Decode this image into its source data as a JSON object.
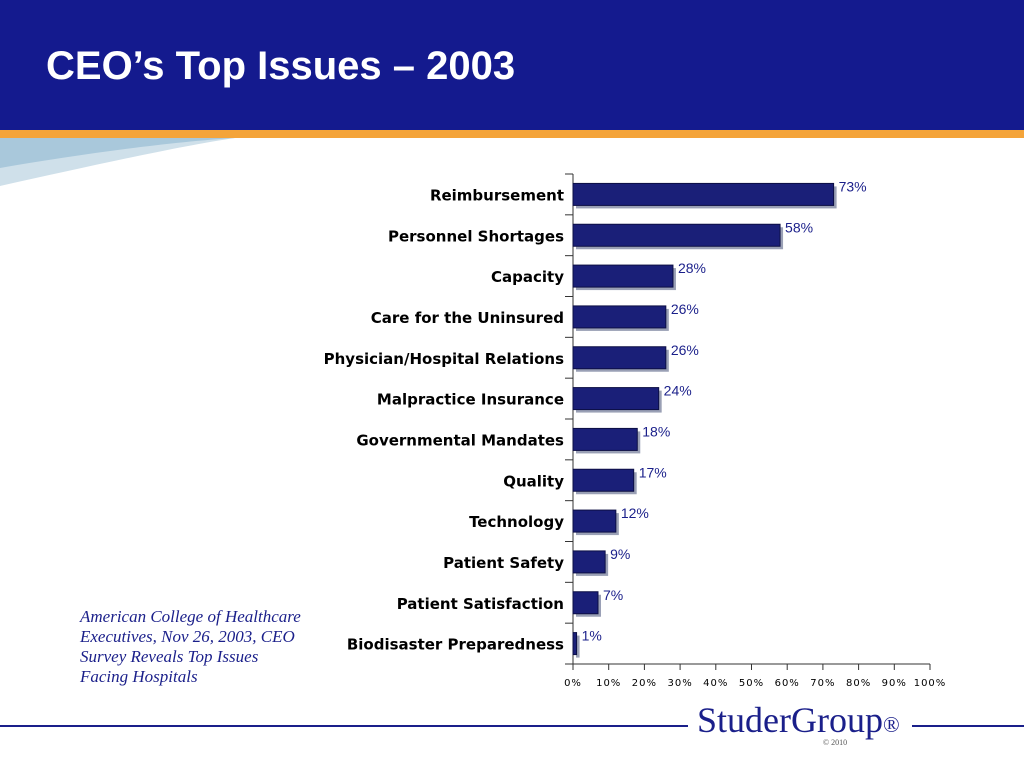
{
  "slide": {
    "title": "CEO’s Top Issues – 2003",
    "source_text": "American College of Healthcare Executives, Nov 26, 2003, CEO Survey Reveals Top Issues Facing Hospitals",
    "logo_text": "StuderGroup",
    "logo_mark": "®",
    "copyright": "© 2010"
  },
  "colors": {
    "header": "#141a8e",
    "accent_bar": "#f4a43a",
    "bar_fill": "#1a1f78",
    "label_text": "#1a1f8a"
  },
  "chart_data": {
    "type": "bar",
    "orientation": "horizontal",
    "categories": [
      "Reimbursement",
      "Personnel Shortages",
      "Capacity",
      "Care for the Uninsured",
      "Physician/Hospital Relations",
      "Malpractice Insurance",
      "Governmental Mandates",
      "Quality",
      "Technology",
      "Patient Safety",
      "Patient Satisfaction",
      "Biodisaster Preparedness"
    ],
    "values": [
      73,
      58,
      28,
      26,
      26,
      24,
      18,
      17,
      12,
      9,
      7,
      1
    ],
    "data_labels": [
      "73%",
      "58%",
      "28%",
      "26%",
      "26%",
      "24%",
      "18%",
      "17%",
      "12%",
      "9%",
      "7%",
      "1%"
    ],
    "xlim": [
      0,
      100
    ],
    "x_ticks": [
      "0%",
      "10%",
      "20%",
      "30%",
      "40%",
      "50%",
      "60%",
      "70%",
      "80%",
      "90%",
      "100%"
    ],
    "grid": false
  }
}
